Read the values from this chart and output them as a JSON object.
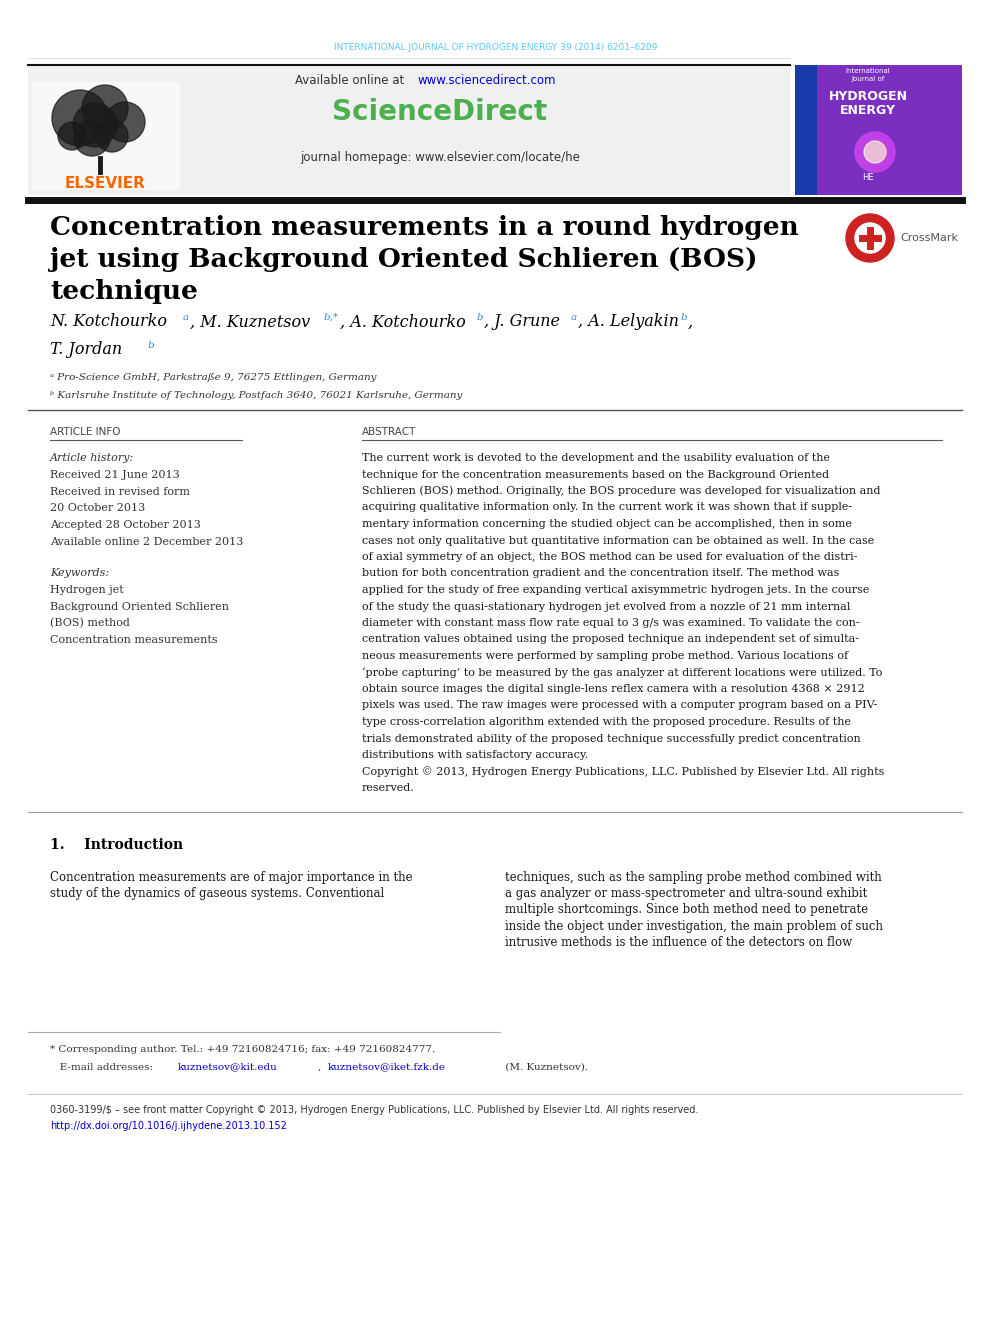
{
  "bg_color": "#ffffff",
  "header_journal_text": "INTERNATIONAL JOURNAL OF HYDROGEN ENERGY 39 (2014) 6201–6209",
  "header_journal_color": "#5bc8f5",
  "header_available_text": "Available online at ",
  "header_url_text": "www.sciencedirect.com",
  "header_url_color": "#0000cc",
  "header_sd_text": "ScienceDirect",
  "header_sd_color": "#4caf50",
  "header_journal_hp": "journal homepage: www.elsevier.com/locate/he",
  "elsevier_color": "#ff6600",
  "separator_color": "#1a1a1a",
  "title_line1": "Concentration measurements in a round hydrogen",
  "title_line2": "jet using Background Oriented Schlieren (BOS)",
  "title_line3": "technique",
  "title_color": "#000000",
  "affil_a": "ᵃ Pro-Science GmbH, Parkstraße 9, 76275 Ettlingen, Germany",
  "affil_b": "ᵇ Karlsruhe Institute of Technology, Postfach 3640, 76021 Karlsruhe, Germany",
  "article_info_header": "ARTICLE INFO",
  "abstract_header": "ABSTRACT",
  "article_history_label": "Article history:",
  "received_text": "Received 21 June 2013",
  "accepted_text": "Accepted 28 October 2013",
  "available_online_text": "Available online 2 December 2013",
  "keywords_label": "Keywords:",
  "keyword1": "Hydrogen jet",
  "keyword3": "Concentration measurements",
  "abstract_lines": [
    "The current work is devoted to the development and the usability evaluation of the",
    "technique for the concentration measurements based on the Background Oriented",
    "Schlieren (BOS) method. Originally, the BOS procedure was developed for visualization and",
    "acquiring qualitative information only. In the current work it was shown that if supple-",
    "mentary information concerning the studied object can be accomplished, then in some",
    "cases not only qualitative but quantitative information can be obtained as well. In the case",
    "of axial symmetry of an object, the BOS method can be used for evaluation of the distri-",
    "bution for both concentration gradient and the concentration itself. The method was",
    "applied for the study of free expanding vertical axisymmetric hydrogen jets. In the course",
    "of the study the quasi-stationary hydrogen jet evolved from a nozzle of 21 mm internal",
    "diameter with constant mass flow rate equal to 3 g/s was examined. To validate the con-",
    "centration values obtained using the proposed technique an independent set of simulta-",
    "neous measurements were performed by sampling probe method. Various locations of",
    "‘probe capturing’ to be measured by the gas analyzer at different locations were utilized. To",
    "obtain source images the digital single-lens reflex camera with a resolution 4368 × 2912",
    "pixels was used. The raw images were processed with a computer program based on a PIV-",
    "type cross-correlation algorithm extended with the proposed procedure. Results of the",
    "trials demonstrated ability of the proposed technique successfully predict concentration",
    "distributions with satisfactory accuracy.",
    "Copyright © 2013, Hydrogen Energy Publications, LLC. Published by Elsevier Ltd. All rights",
    "reserved."
  ],
  "intro_header": "1.    Introduction",
  "intro_left": [
    "Concentration measurements are of major importance in the",
    "study of the dynamics of gaseous systems. Conventional"
  ],
  "intro_right": [
    "techniques, such as the sampling probe method combined with",
    "a gas analyzer or mass-spectrometer and ultra-sound exhibit",
    "multiple shortcomings. Since both method need to penetrate",
    "inside the object under investigation, the main problem of such",
    "intrusive methods is the influence of the detectors on flow"
  ],
  "footnote_corresponding": "* Corresponding author. Tel.: +49 72160824716; fax: +49 72160824777.",
  "footnote_license": "0360-3199/$ – see front matter Copyright © 2013, Hydrogen Energy Publications, LLC. Published by Elsevier Ltd. All rights reserved.",
  "footnote_doi": "http://dx.doi.org/10.1016/j.ijhydene.2013.10.152",
  "footnote_doi_color": "#0000cc",
  "footnote_email_link_color": "#0000cc"
}
